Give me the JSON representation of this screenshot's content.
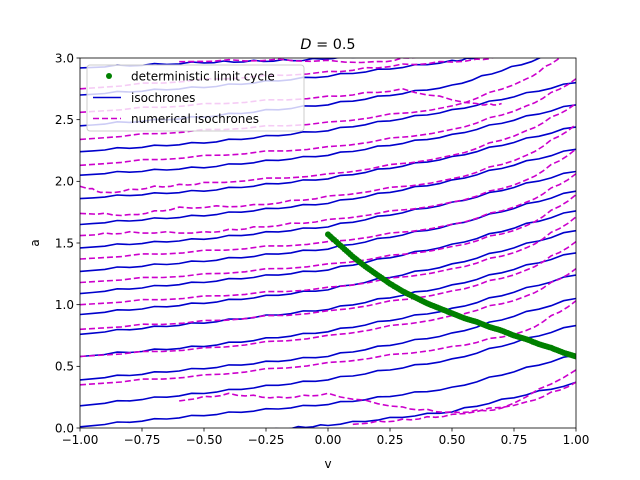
{
  "chart_data": {
    "type": "line",
    "title_prefix": "D",
    "title_suffix": "= 0.5",
    "xlabel": "v",
    "ylabel": "a",
    "xlim": [
      -1.0,
      1.0
    ],
    "ylim": [
      0.0,
      3.0
    ],
    "grid": false,
    "legend_position": "top-left",
    "x_ticks": [
      {
        "value": -1.0,
        "label": "−1.00"
      },
      {
        "value": -0.75,
        "label": "−0.75"
      },
      {
        "value": -0.5,
        "label": "−0.50"
      },
      {
        "value": -0.25,
        "label": "−0.25"
      },
      {
        "value": 0.0,
        "label": "0.00"
      },
      {
        "value": 0.25,
        "label": "0.25"
      },
      {
        "value": 0.5,
        "label": "0.50"
      },
      {
        "value": 0.75,
        "label": "0.75"
      },
      {
        "value": 1.0,
        "label": "1.00"
      }
    ],
    "y_ticks": [
      {
        "value": 0.0,
        "label": "0.0"
      },
      {
        "value": 0.5,
        "label": "0.5"
      },
      {
        "value": 1.0,
        "label": "1.0"
      },
      {
        "value": 1.5,
        "label": "1.5"
      },
      {
        "value": 2.0,
        "label": "2.0"
      },
      {
        "value": 2.5,
        "label": "2.5"
      },
      {
        "value": 3.0,
        "label": "3.0"
      }
    ],
    "series": [
      {
        "name": "deterministic limit cycle",
        "style": "dots",
        "color": "#008000",
        "x": [
          0.0,
          0.05,
          0.1,
          0.15,
          0.2,
          0.25,
          0.3,
          0.35,
          0.4,
          0.45,
          0.5,
          0.55,
          0.6,
          0.65,
          0.7,
          0.75,
          0.8,
          0.85,
          0.9,
          0.95,
          1.0
        ],
        "y": [
          1.57,
          1.48,
          1.39,
          1.31,
          1.24,
          1.17,
          1.11,
          1.06,
          1.01,
          0.97,
          0.93,
          0.89,
          0.86,
          0.82,
          0.79,
          0.75,
          0.72,
          0.68,
          0.65,
          0.61,
          0.58
        ]
      },
      {
        "name": "isochrones",
        "style": "solid",
        "color": "#0000cc",
        "lines": [
          {
            "x": [
              -0.3,
              0.0,
              0.5,
              1.0
            ],
            "y": [
              -0.03,
              0.02,
              0.13,
              0.36
            ]
          },
          {
            "x": [
              -1.0,
              -0.5,
              0.0,
              0.5,
              1.0
            ],
            "y": [
              0.01,
              0.1,
              0.19,
              0.32,
              0.59
            ]
          },
          {
            "x": [
              -1.0,
              -0.5,
              0.0,
              0.5,
              1.0
            ],
            "y": [
              0.18,
              0.28,
              0.39,
              0.55,
              0.83
            ]
          },
          {
            "x": [
              -1.0,
              -0.5,
              0.0,
              0.5,
              1.0
            ],
            "y": [
              0.39,
              0.48,
              0.58,
              0.76,
              1.05
            ]
          },
          {
            "x": [
              -1.0,
              -0.5,
              0.0,
              0.5,
              1.0
            ],
            "y": [
              0.58,
              0.66,
              0.78,
              0.96,
              1.24
            ]
          },
          {
            "x": [
              -1.0,
              -0.5,
              0.0,
              0.5,
              1.0
            ],
            "y": [
              0.76,
              0.85,
              0.96,
              1.15,
              1.42
            ]
          },
          {
            "x": [
              -1.0,
              -0.5,
              0.0,
              0.5,
              1.0
            ],
            "y": [
              0.92,
              1.01,
              1.12,
              1.32,
              1.6
            ]
          },
          {
            "x": [
              -1.0,
              -0.5,
              0.0,
              0.5,
              1.0
            ],
            "y": [
              1.09,
              1.18,
              1.28,
              1.48,
              1.76
            ]
          },
          {
            "x": [
              -1.0,
              -0.5,
              0.0,
              0.5,
              1.0
            ],
            "y": [
              1.27,
              1.35,
              1.45,
              1.64,
              1.92
            ]
          },
          {
            "x": [
              -1.0,
              -0.5,
              0.0,
              0.5,
              1.0
            ],
            "y": [
              1.46,
              1.53,
              1.63,
              1.82,
              2.08
            ]
          },
          {
            "x": [
              -1.0,
              -0.5,
              0.0,
              0.5,
              1.0
            ],
            "y": [
              1.65,
              1.72,
              1.82,
              2.0,
              2.26
            ]
          },
          {
            "x": [
              -1.0,
              -0.5,
              0.0,
              0.5,
              1.0
            ],
            "y": [
              1.86,
              1.92,
              2.02,
              2.19,
              2.44
            ]
          },
          {
            "x": [
              -1.0,
              -0.5,
              0.0,
              0.5,
              1.0
            ],
            "y": [
              2.05,
              2.11,
              2.21,
              2.37,
              2.62
            ]
          },
          {
            "x": [
              -1.0,
              -0.5,
              0.0,
              0.5,
              1.0
            ],
            "y": [
              2.24,
              2.31,
              2.41,
              2.57,
              2.8
            ]
          },
          {
            "x": [
              -1.0,
              -0.5,
              0.0,
              0.5,
              0.9
            ],
            "y": [
              2.45,
              2.52,
              2.62,
              2.77,
              3.02
            ]
          },
          {
            "x": [
              -1.0,
              -0.5,
              0.0,
              0.5,
              0.7
            ],
            "y": [
              2.7,
              2.76,
              2.85,
              2.97,
              3.03
            ]
          },
          {
            "x": [
              -1.0,
              -0.5,
              -0.1,
              0.3
            ],
            "y": [
              2.92,
              2.96,
              2.98,
              3.03
            ]
          }
        ]
      },
      {
        "name": "numerical isochrones",
        "style": "dashed",
        "color": "#cc00cc",
        "lines": [
          {
            "x": [
              0.1,
              0.3,
              0.5,
              0.8,
              1.0
            ],
            "y": [
              0.03,
              0.06,
              0.1,
              0.2,
              0.36
            ]
          },
          {
            "x": [
              -0.6,
              -0.4,
              -0.2,
              0.0,
              0.3,
              0.5,
              0.7,
              1.0
            ],
            "y": [
              0.22,
              0.27,
              0.24,
              0.27,
              0.16,
              0.12,
              0.15,
              0.46
            ]
          },
          {
            "x": [
              -1.0,
              -0.5,
              0.0,
              0.5,
              0.8,
              1.0
            ],
            "y": [
              0.35,
              0.42,
              0.52,
              0.65,
              0.78,
              1.02
            ]
          },
          {
            "x": [
              -1.0,
              -0.5,
              0.0,
              0.5,
              0.8,
              1.0
            ],
            "y": [
              0.58,
              0.64,
              0.74,
              0.9,
              1.06,
              1.28
            ]
          },
          {
            "x": [
              -1.0,
              -0.5,
              0.0,
              0.5,
              0.8,
              1.0
            ],
            "y": [
              0.8,
              0.86,
              0.94,
              1.1,
              1.27,
              1.5
            ]
          },
          {
            "x": [
              -1.0,
              -0.5,
              0.0,
              0.5,
              0.8,
              1.0
            ],
            "y": [
              1.0,
              1.06,
              1.13,
              1.28,
              1.45,
              1.7
            ]
          },
          {
            "x": [
              -1.0,
              -0.5,
              0.0,
              0.5,
              0.8,
              1.0
            ],
            "y": [
              1.18,
              1.24,
              1.32,
              1.46,
              1.63,
              1.88
            ]
          },
          {
            "x": [
              -1.0,
              -0.5,
              0.0,
              0.5,
              0.8,
              1.0
            ],
            "y": [
              1.37,
              1.43,
              1.5,
              1.64,
              1.82,
              2.05
            ]
          },
          {
            "x": [
              -1.0,
              -0.8,
              -0.5,
              -0.3,
              0.0,
              0.5,
              0.8,
              1.0
            ],
            "y": [
              1.56,
              1.58,
              1.58,
              1.62,
              1.68,
              1.82,
              2.0,
              2.25
            ]
          },
          {
            "x": [
              -1.0,
              -0.8,
              -0.6,
              -0.3,
              0.0,
              0.5,
              0.8,
              1.0
            ],
            "y": [
              1.74,
              1.72,
              1.78,
              1.8,
              1.87,
              2.01,
              2.2,
              2.45
            ]
          },
          {
            "x": [
              -1.0,
              -0.9,
              -0.7,
              -0.5,
              0.0,
              0.5,
              0.8,
              1.0
            ],
            "y": [
              1.96,
              1.9,
              1.95,
              1.98,
              2.05,
              2.2,
              2.4,
              2.62
            ]
          },
          {
            "x": [
              -1.0,
              -0.5,
              0.0,
              0.5,
              0.8,
              1.0
            ],
            "y": [
              2.13,
              2.2,
              2.27,
              2.41,
              2.6,
              2.82
            ]
          },
          {
            "x": [
              -1.0,
              -0.5,
              0.0,
              0.5,
              0.8,
              0.95
            ],
            "y": [
              2.34,
              2.41,
              2.47,
              2.6,
              2.82,
              3.02
            ]
          },
          {
            "x": [
              -1.0,
              -0.5,
              0.0,
              0.3,
              0.6,
              0.7
            ],
            "y": [
              2.56,
              2.62,
              2.68,
              2.74,
              2.62,
              2.62
            ]
          },
          {
            "x": [
              -1.0,
              -0.5,
              0.0,
              0.3,
              0.6,
              0.75
            ],
            "y": [
              2.75,
              2.82,
              2.88,
              2.94,
              2.98,
              3.02
            ]
          },
          {
            "x": [
              -0.6,
              -0.2,
              0.2,
              0.4
            ],
            "y": [
              2.97,
              2.98,
              2.96,
              3.02
            ]
          }
        ]
      }
    ]
  }
}
